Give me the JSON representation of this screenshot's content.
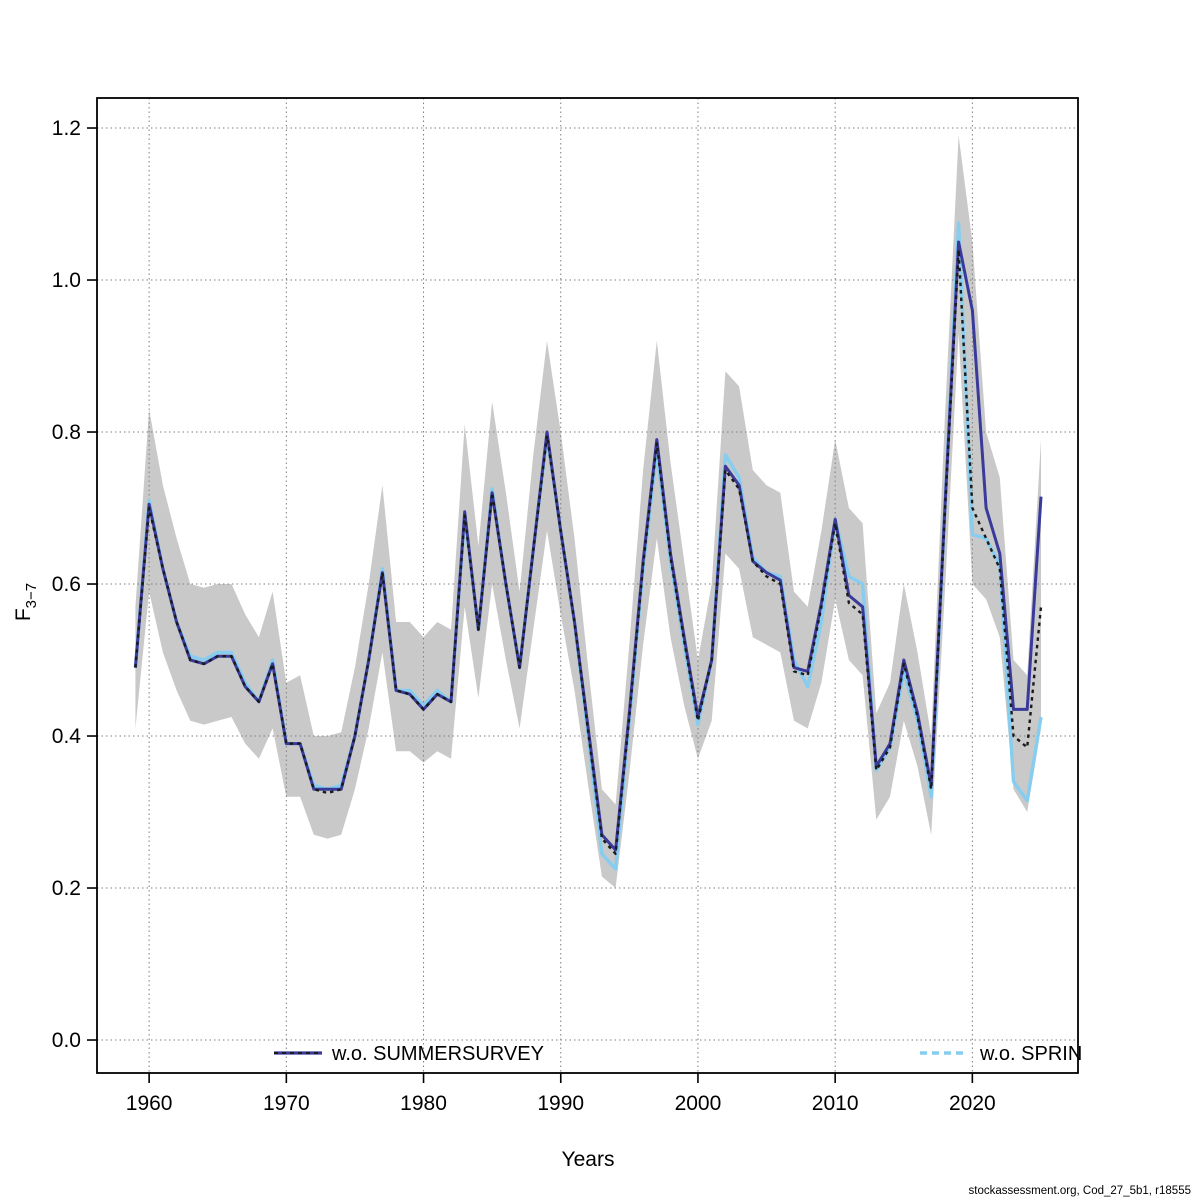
{
  "footer": {
    "text": "stockassessment.org, Cod_27_5b1, r18555"
  },
  "chart_data": {
    "type": "line",
    "title": "",
    "xlabel": "Years",
    "ylabel": "F",
    "ylabel_sub": "3−7",
    "grid": "dotted",
    "legend_position": "bottom",
    "xlim": [
      1956.2,
      2027.7
    ],
    "ylim": [
      -0.0434,
      1.2395
    ],
    "x_ticks": [
      1960,
      1970,
      1980,
      1990,
      2000,
      2010,
      2020
    ],
    "y_ticks": [
      0.0,
      0.2,
      0.4,
      0.6,
      0.8,
      1.0,
      1.2
    ],
    "y_tick_labels": [
      "0.0",
      "0.2",
      "0.4",
      "0.6",
      "0.8",
      "1.0",
      "1.2"
    ],
    "years": [
      1959,
      1960,
      1961,
      1962,
      1963,
      1964,
      1965,
      1966,
      1967,
      1968,
      1969,
      1970,
      1971,
      1972,
      1973,
      1974,
      1975,
      1976,
      1977,
      1978,
      1979,
      1980,
      1981,
      1982,
      1983,
      1984,
      1985,
      1986,
      1987,
      1988,
      1989,
      1990,
      1991,
      1992,
      1993,
      1994,
      1995,
      1996,
      1997,
      1998,
      1999,
      2000,
      2001,
      2002,
      2003,
      2004,
      2005,
      2006,
      2007,
      2008,
      2009,
      2010,
      2011,
      2012,
      2013,
      2014,
      2015,
      2016,
      2017,
      2018,
      2019,
      2020,
      2021,
      2022,
      2023,
      2024,
      2025
    ],
    "band": {
      "name": "confidence-interval",
      "color": "#C9C9C9",
      "lower": [
        0.41,
        0.59,
        0.51,
        0.46,
        0.42,
        0.415,
        0.42,
        0.425,
        0.39,
        0.37,
        0.41,
        0.32,
        0.32,
        0.27,
        0.265,
        0.27,
        0.33,
        0.41,
        0.51,
        0.38,
        0.38,
        0.365,
        0.38,
        0.37,
        0.57,
        0.45,
        0.6,
        0.5,
        0.41,
        0.54,
        0.67,
        0.56,
        0.46,
        0.335,
        0.215,
        0.2,
        0.35,
        0.52,
        0.66,
        0.53,
        0.44,
        0.37,
        0.42,
        0.64,
        0.62,
        0.53,
        0.52,
        0.51,
        0.42,
        0.41,
        0.47,
        0.58,
        0.5,
        0.48,
        0.29,
        0.32,
        0.42,
        0.36,
        0.27,
        0.59,
        0.93,
        0.6,
        0.58,
        0.53,
        0.33,
        0.3,
        0.41
      ],
      "upper": [
        0.57,
        0.83,
        0.73,
        0.66,
        0.6,
        0.595,
        0.6,
        0.6,
        0.56,
        0.53,
        0.59,
        0.47,
        0.48,
        0.4,
        0.4,
        0.405,
        0.49,
        0.6,
        0.73,
        0.55,
        0.55,
        0.53,
        0.55,
        0.54,
        0.81,
        0.65,
        0.84,
        0.72,
        0.59,
        0.77,
        0.92,
        0.8,
        0.66,
        0.49,
        0.33,
        0.31,
        0.52,
        0.75,
        0.92,
        0.76,
        0.63,
        0.5,
        0.6,
        0.88,
        0.86,
        0.75,
        0.73,
        0.72,
        0.59,
        0.57,
        0.67,
        0.79,
        0.7,
        0.68,
        0.43,
        0.47,
        0.6,
        0.51,
        0.4,
        0.82,
        1.19,
        1.05,
        0.8,
        0.74,
        0.5,
        0.48,
        0.79
      ]
    },
    "series": [
      {
        "name": "light-blue-solid",
        "color": "#86CDEF",
        "width": 3.4,
        "dash": "",
        "values": [
          0.49,
          0.71,
          0.62,
          0.55,
          0.505,
          0.5,
          0.51,
          0.51,
          0.47,
          0.445,
          0.5,
          0.39,
          0.39,
          0.335,
          0.33,
          0.335,
          0.4,
          0.5,
          0.62,
          0.46,
          0.46,
          0.44,
          0.46,
          0.445,
          0.69,
          0.54,
          0.725,
          0.6,
          0.49,
          0.645,
          0.795,
          0.67,
          0.55,
          0.4,
          0.245,
          0.225,
          0.42,
          0.62,
          0.775,
          0.63,
          0.52,
          0.415,
          0.5,
          0.77,
          0.74,
          0.635,
          0.615,
          0.61,
          0.5,
          0.465,
          0.55,
          0.685,
          0.61,
          0.6,
          0.355,
          0.385,
          0.485,
          0.42,
          0.32,
          0.7,
          1.075,
          0.665,
          0.66,
          0.625,
          0.34,
          0.315,
          0.425
        ]
      },
      {
        "name": "wo-summersurvey-navy-solid",
        "color": "#3A3A9A",
        "width": 3,
        "dash": "",
        "values": [
          0.49,
          0.705,
          0.62,
          0.55,
          0.5,
          0.495,
          0.505,
          0.505,
          0.465,
          0.445,
          0.495,
          0.39,
          0.39,
          0.33,
          0.33,
          0.33,
          0.4,
          0.5,
          0.615,
          0.46,
          0.455,
          0.435,
          0.455,
          0.445,
          0.695,
          0.54,
          0.72,
          0.6,
          0.49,
          0.645,
          0.8,
          0.67,
          0.55,
          0.41,
          0.27,
          0.25,
          0.43,
          0.63,
          0.79,
          0.64,
          0.53,
          0.425,
          0.5,
          0.755,
          0.73,
          0.63,
          0.615,
          0.605,
          0.49,
          0.485,
          0.575,
          0.685,
          0.585,
          0.57,
          0.36,
          0.39,
          0.5,
          0.43,
          0.335,
          0.7,
          1.05,
          0.96,
          0.7,
          0.64,
          0.435,
          0.435,
          0.715
        ]
      },
      {
        "name": "black-dotted",
        "color": "#1A1A1A",
        "width": 2.4,
        "dash": "3.5 4",
        "values": [
          0.49,
          0.7,
          0.62,
          0.55,
          0.5,
          0.495,
          0.505,
          0.505,
          0.465,
          0.445,
          0.495,
          0.39,
          0.39,
          0.33,
          0.325,
          0.33,
          0.4,
          0.5,
          0.615,
          0.46,
          0.455,
          0.435,
          0.455,
          0.445,
          0.69,
          0.54,
          0.72,
          0.6,
          0.49,
          0.645,
          0.795,
          0.67,
          0.55,
          0.405,
          0.265,
          0.245,
          0.425,
          0.625,
          0.785,
          0.635,
          0.525,
          0.42,
          0.5,
          0.75,
          0.725,
          0.63,
          0.61,
          0.6,
          0.485,
          0.48,
          0.57,
          0.68,
          0.575,
          0.56,
          0.355,
          0.385,
          0.495,
          0.425,
          0.33,
          0.695,
          1.04,
          0.7,
          0.66,
          0.62,
          0.4,
          0.385,
          0.57
        ]
      }
    ],
    "legend": {
      "entries": [
        {
          "label": "w.o. SUMMERSURVEY",
          "color": "#3A3A9A",
          "line": "solid-with-dots"
        },
        {
          "label": "w.o. SPRIN",
          "color": "#86CDEF",
          "line": "dashed"
        }
      ]
    }
  }
}
